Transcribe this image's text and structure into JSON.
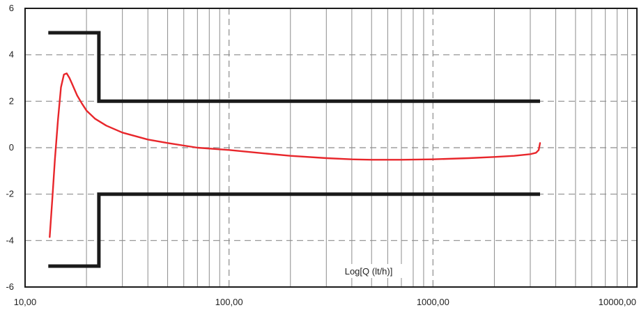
{
  "chart_data": {
    "type": "line",
    "title": "",
    "xlabel": "Log[Q (lt/h)]",
    "ylabel": "",
    "x_scale": "log",
    "xlim": [
      10,
      10000
    ],
    "ylim": [
      -6,
      6
    ],
    "x_ticks": [
      10,
      100,
      1000,
      10000
    ],
    "x_tick_labels": [
      "10,00",
      "100,00",
      "1000,00",
      "10000,00"
    ],
    "y_ticks": [
      6,
      4,
      2,
      0,
      -2,
      -4,
      -6
    ],
    "y_tick_labels": [
      "6",
      "4",
      "2",
      "0",
      "-2",
      "-4",
      "-6"
    ],
    "grid": true,
    "colors": {
      "curve": "#e8262b",
      "limits": "#1a1a1a",
      "grid": "#8c8c8c",
      "frame": "#1a1a1a"
    },
    "series": [
      {
        "x": [
          13.2,
          13.6,
          14.0,
          14.5,
          15.0,
          15.5,
          16.0,
          16.5,
          17.0,
          18.0,
          19.0,
          20.0,
          22.0,
          25.0,
          30.0,
          40.0,
          50.0,
          70.0,
          100.0,
          150.0,
          200.0,
          300.0,
          400.0,
          500.0,
          700.0,
          1000.0,
          1500.0,
          2000.0,
          2500.0,
          3000.0,
          3200.0,
          3300.0,
          3350.0
        ],
        "values": [
          -3.85,
          -2.2,
          -0.5,
          1.2,
          2.6,
          3.15,
          3.2,
          3.0,
          2.75,
          2.25,
          1.9,
          1.6,
          1.25,
          0.95,
          0.65,
          0.35,
          0.2,
          0.0,
          -0.1,
          -0.25,
          -0.35,
          -0.45,
          -0.5,
          -0.52,
          -0.52,
          -0.5,
          -0.45,
          -0.4,
          -0.35,
          -0.28,
          -0.22,
          -0.1,
          0.2
        ]
      }
    ],
    "limit_lines": [
      {
        "x": [
          13.0,
          23.0,
          23.0,
          3350.0
        ],
        "values": [
          4.95,
          4.95,
          2.0,
          2.0
        ]
      },
      {
        "x": [
          13.0,
          23.0,
          23.0,
          3350.0
        ],
        "values": [
          -5.1,
          -5.1,
          -2.0,
          -2.0
        ]
      }
    ]
  }
}
